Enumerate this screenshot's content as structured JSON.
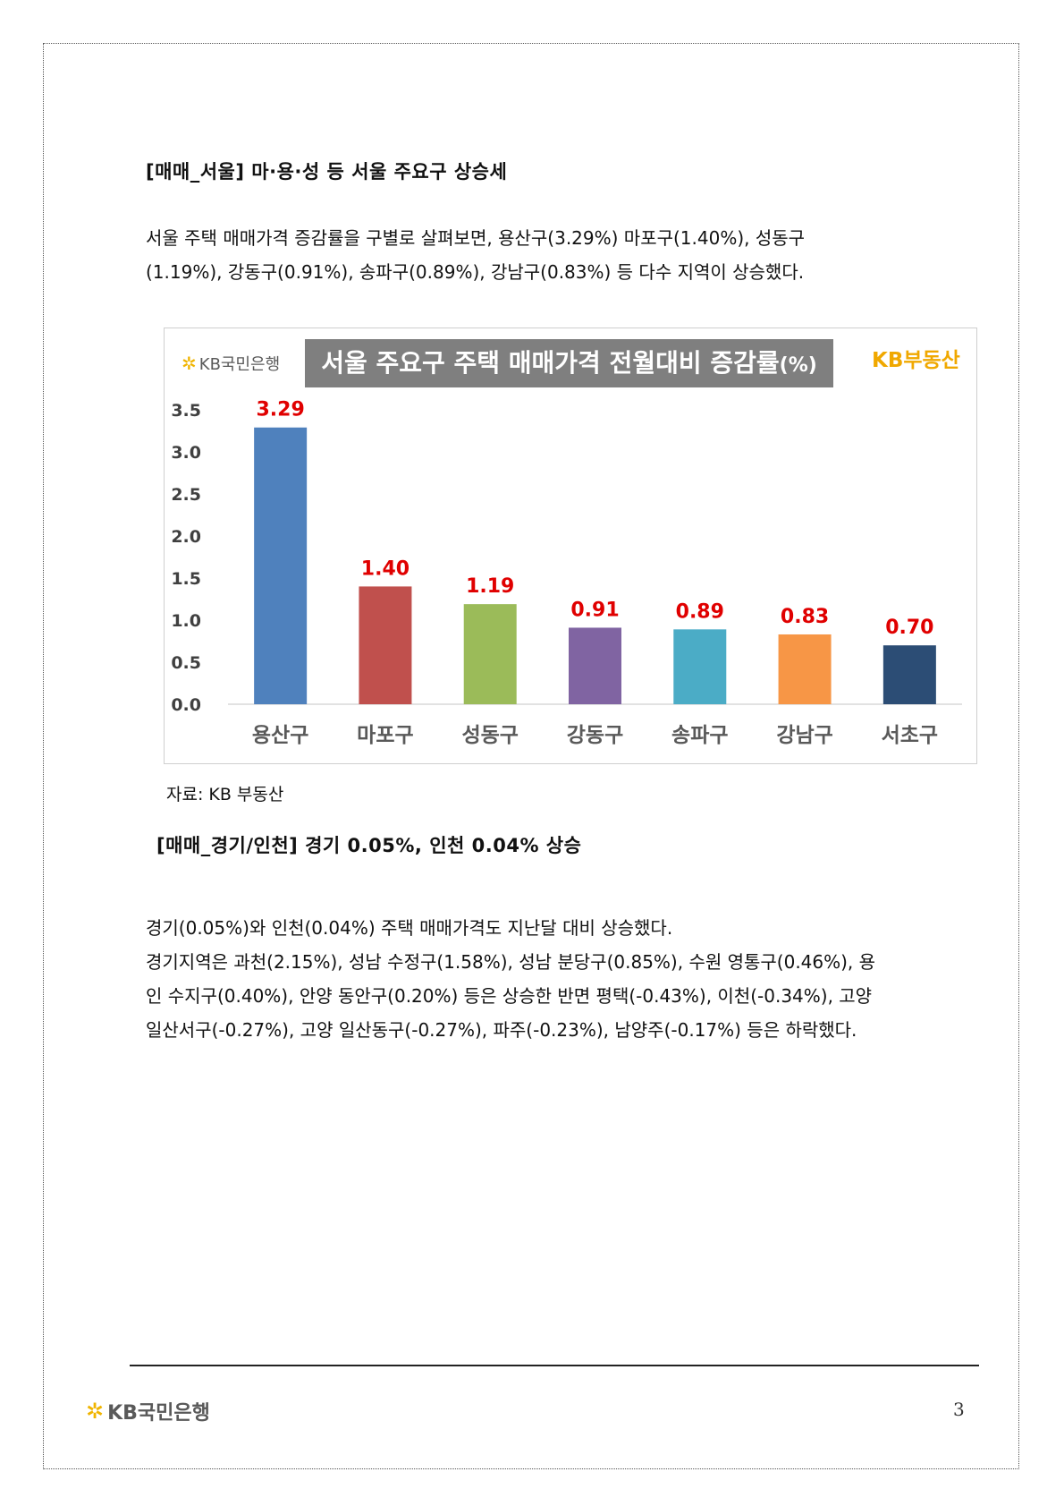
{
  "section1": {
    "heading": "[매매_서울] 마·용·성 등 서울 주요구 상승세",
    "paragraph_line1": "서울 주택 매매가격 증감률을 구별로 살펴보면, 용산구(3.29%) 마포구(1.40%), 성동구",
    "paragraph_line2": "(1.19%), 강동구(0.91%), 송파구(0.89%), 강남구(0.83%) 등 다수 지역이 상승했다."
  },
  "chart_header": {
    "logo_text": "KB국민은행",
    "title": "서울 주요구 주택 매매가격 전월대비 증감률",
    "title_unit": "(%)",
    "brand": "KB부동산"
  },
  "chart_data": {
    "type": "bar",
    "title": "서울 주요구 주택 매매가격 전월대비 증감률(%)",
    "categories": [
      "용산구",
      "마포구",
      "성동구",
      "강동구",
      "송파구",
      "강남구",
      "서초구"
    ],
    "values": [
      3.29,
      1.4,
      1.19,
      0.91,
      0.89,
      0.83,
      0.7
    ],
    "value_labels": [
      "3.29",
      "1.40",
      "1.19",
      "0.91",
      "0.89",
      "0.83",
      "0.70"
    ],
    "colors": [
      "#4f81bd",
      "#c0504d",
      "#9bbb59",
      "#8064a2",
      "#4bacc6",
      "#f79646",
      "#2c4d75"
    ],
    "label_color": "#e00000",
    "yticks": [
      "0.0",
      "0.5",
      "1.0",
      "1.5",
      "2.0",
      "2.5",
      "3.0",
      "3.5"
    ],
    "ylim": [
      0,
      3.5
    ],
    "grid": false,
    "legend": "none"
  },
  "source_note": "자료: KB 부동산",
  "section2": {
    "heading": "[매매_경기/인천] 경기 0.05%, 인천 0.04% 상승",
    "line1": "경기(0.05%)와 인천(0.04%) 주택 매매가격도 지난달 대비 상승했다.",
    "line2": "경기지역은 과천(2.15%), 성남 수정구(1.58%), 성남 분당구(0.85%), 수원 영통구(0.46%), 용",
    "line3": "인 수지구(0.40%), 안양 동안구(0.20%) 등은 상승한 반면 평택(-0.43%), 이천(-0.34%), 고양",
    "line4": "일산서구(-0.27%), 고양 일산동구(-0.27%), 파주(-0.23%), 남양주(-0.17%) 등은 하락했다."
  },
  "footer": {
    "logo_text": "KB국민은행",
    "page_number": "3"
  }
}
